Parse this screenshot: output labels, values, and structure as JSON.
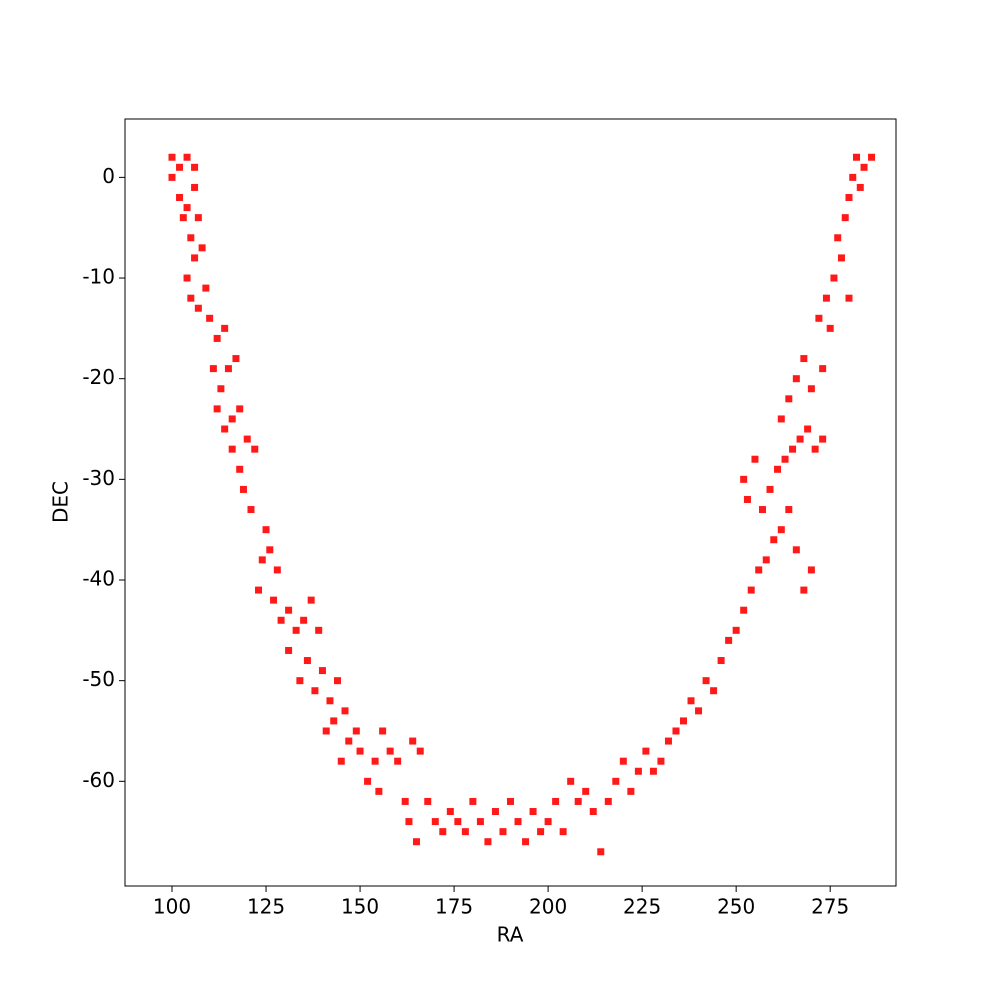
{
  "chart_data": {
    "type": "scatter",
    "x_label": "RA",
    "y_label": "DEC",
    "color": "#ff0000",
    "xlim": [
      87.5,
      292.5
    ],
    "ylim": [
      -70.4,
      5.8
    ],
    "xticks": [
      100,
      125,
      150,
      175,
      200,
      225,
      250,
      275
    ],
    "yticks": [
      0,
      -10,
      -20,
      -30,
      -40,
      -50,
      -60
    ],
    "series": [
      {
        "color": "#ff0000",
        "x": [
          100,
          102,
          104,
          106,
          100,
          102,
          104,
          106,
          103,
          105,
          107,
          106,
          108,
          104,
          105,
          107,
          109,
          110,
          112,
          114,
          111,
          113,
          115,
          117,
          112,
          114,
          116,
          118,
          116,
          118,
          120,
          122,
          119,
          121,
          125,
          124,
          126,
          128,
          123,
          127,
          129,
          131,
          133,
          135,
          137,
          139,
          131,
          134,
          136,
          138,
          140,
          142,
          144,
          146,
          141,
          143,
          147,
          149,
          145,
          150,
          152,
          154,
          156,
          158,
          155,
          160,
          162,
          164,
          166,
          163,
          165,
          168,
          170,
          172,
          174,
          176,
          178,
          180,
          182,
          184,
          186,
          188,
          190,
          192,
          194,
          196,
          198,
          200,
          202,
          204,
          206,
          208,
          210,
          212,
          214,
          216,
          218,
          220,
          222,
          224,
          226,
          228,
          230,
          232,
          234,
          236,
          238,
          240,
          242,
          244,
          246,
          248,
          250,
          252,
          254,
          256,
          258,
          260,
          262,
          257,
          259,
          261,
          263,
          265,
          267,
          269,
          271,
          273,
          255,
          253,
          252,
          264,
          266,
          268,
          270,
          262,
          264,
          266,
          268,
          270,
          272,
          274,
          276,
          278,
          275,
          277,
          279,
          280,
          281,
          282,
          284,
          286,
          283,
          280,
          273
        ],
        "values": [
          2,
          1,
          2,
          1,
          0,
          -2,
          -3,
          -1,
          -4,
          -6,
          -4,
          -8,
          -7,
          -10,
          -12,
          -13,
          -11,
          -14,
          -16,
          -15,
          -19,
          -21,
          -19,
          -18,
          -23,
          -25,
          -24,
          -23,
          -27,
          -29,
          -26,
          -27,
          -31,
          -33,
          -35,
          -38,
          -37,
          -39,
          -41,
          -42,
          -44,
          -43,
          -45,
          -44,
          -42,
          -45,
          -47,
          -50,
          -48,
          -51,
          -49,
          -52,
          -50,
          -53,
          -55,
          -54,
          -56,
          -55,
          -58,
          -57,
          -60,
          -58,
          -55,
          -57,
          -61,
          -58,
          -62,
          -56,
          -57,
          -64,
          -66,
          -62,
          -64,
          -65,
          -63,
          -64,
          -65,
          -62,
          -64,
          -66,
          -63,
          -65,
          -62,
          -64,
          -66,
          -63,
          -65,
          -64,
          -62,
          -65,
          -60,
          -62,
          -61,
          -63,
          -67,
          -62,
          -60,
          -58,
          -61,
          -59,
          -57,
          -59,
          -58,
          -56,
          -55,
          -54,
          -52,
          -53,
          -50,
          -51,
          -48,
          -46,
          -45,
          -43,
          -41,
          -39,
          -38,
          -36,
          -35,
          -33,
          -31,
          -29,
          -28,
          -27,
          -26,
          -25,
          -27,
          -26,
          -28,
          -32,
          -30,
          -33,
          -37,
          -41,
          -39,
          -24,
          -22,
          -20,
          -18,
          -21,
          -14,
          -12,
          -10,
          -8,
          -15,
          -6,
          -4,
          -2,
          0,
          2,
          1,
          2,
          -1,
          -12,
          -19
        ]
      }
    ]
  }
}
